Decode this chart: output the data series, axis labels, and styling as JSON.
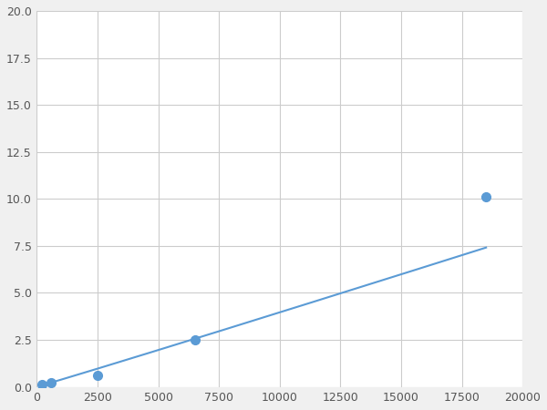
{
  "x": [
    200,
    600,
    2500,
    6500,
    18500
  ],
  "y": [
    0.1,
    0.2,
    0.6,
    2.5,
    10.1
  ],
  "line_color": "#5b9bd5",
  "marker_color": "#5b9bd5",
  "marker_size": 7,
  "line_width": 1.5,
  "xlim": [
    0,
    20000
  ],
  "ylim": [
    0,
    20.0
  ],
  "xticks": [
    0,
    2500,
    5000,
    7500,
    10000,
    12500,
    15000,
    17500,
    20000
  ],
  "yticks": [
    0.0,
    2.5,
    5.0,
    7.5,
    10.0,
    12.5,
    15.0,
    17.5,
    20.0
  ],
  "grid_color": "#cccccc",
  "background_color": "#ffffff",
  "fig_background": "#f0f0f0",
  "tick_labelsize": 9,
  "tick_color": "#555555"
}
